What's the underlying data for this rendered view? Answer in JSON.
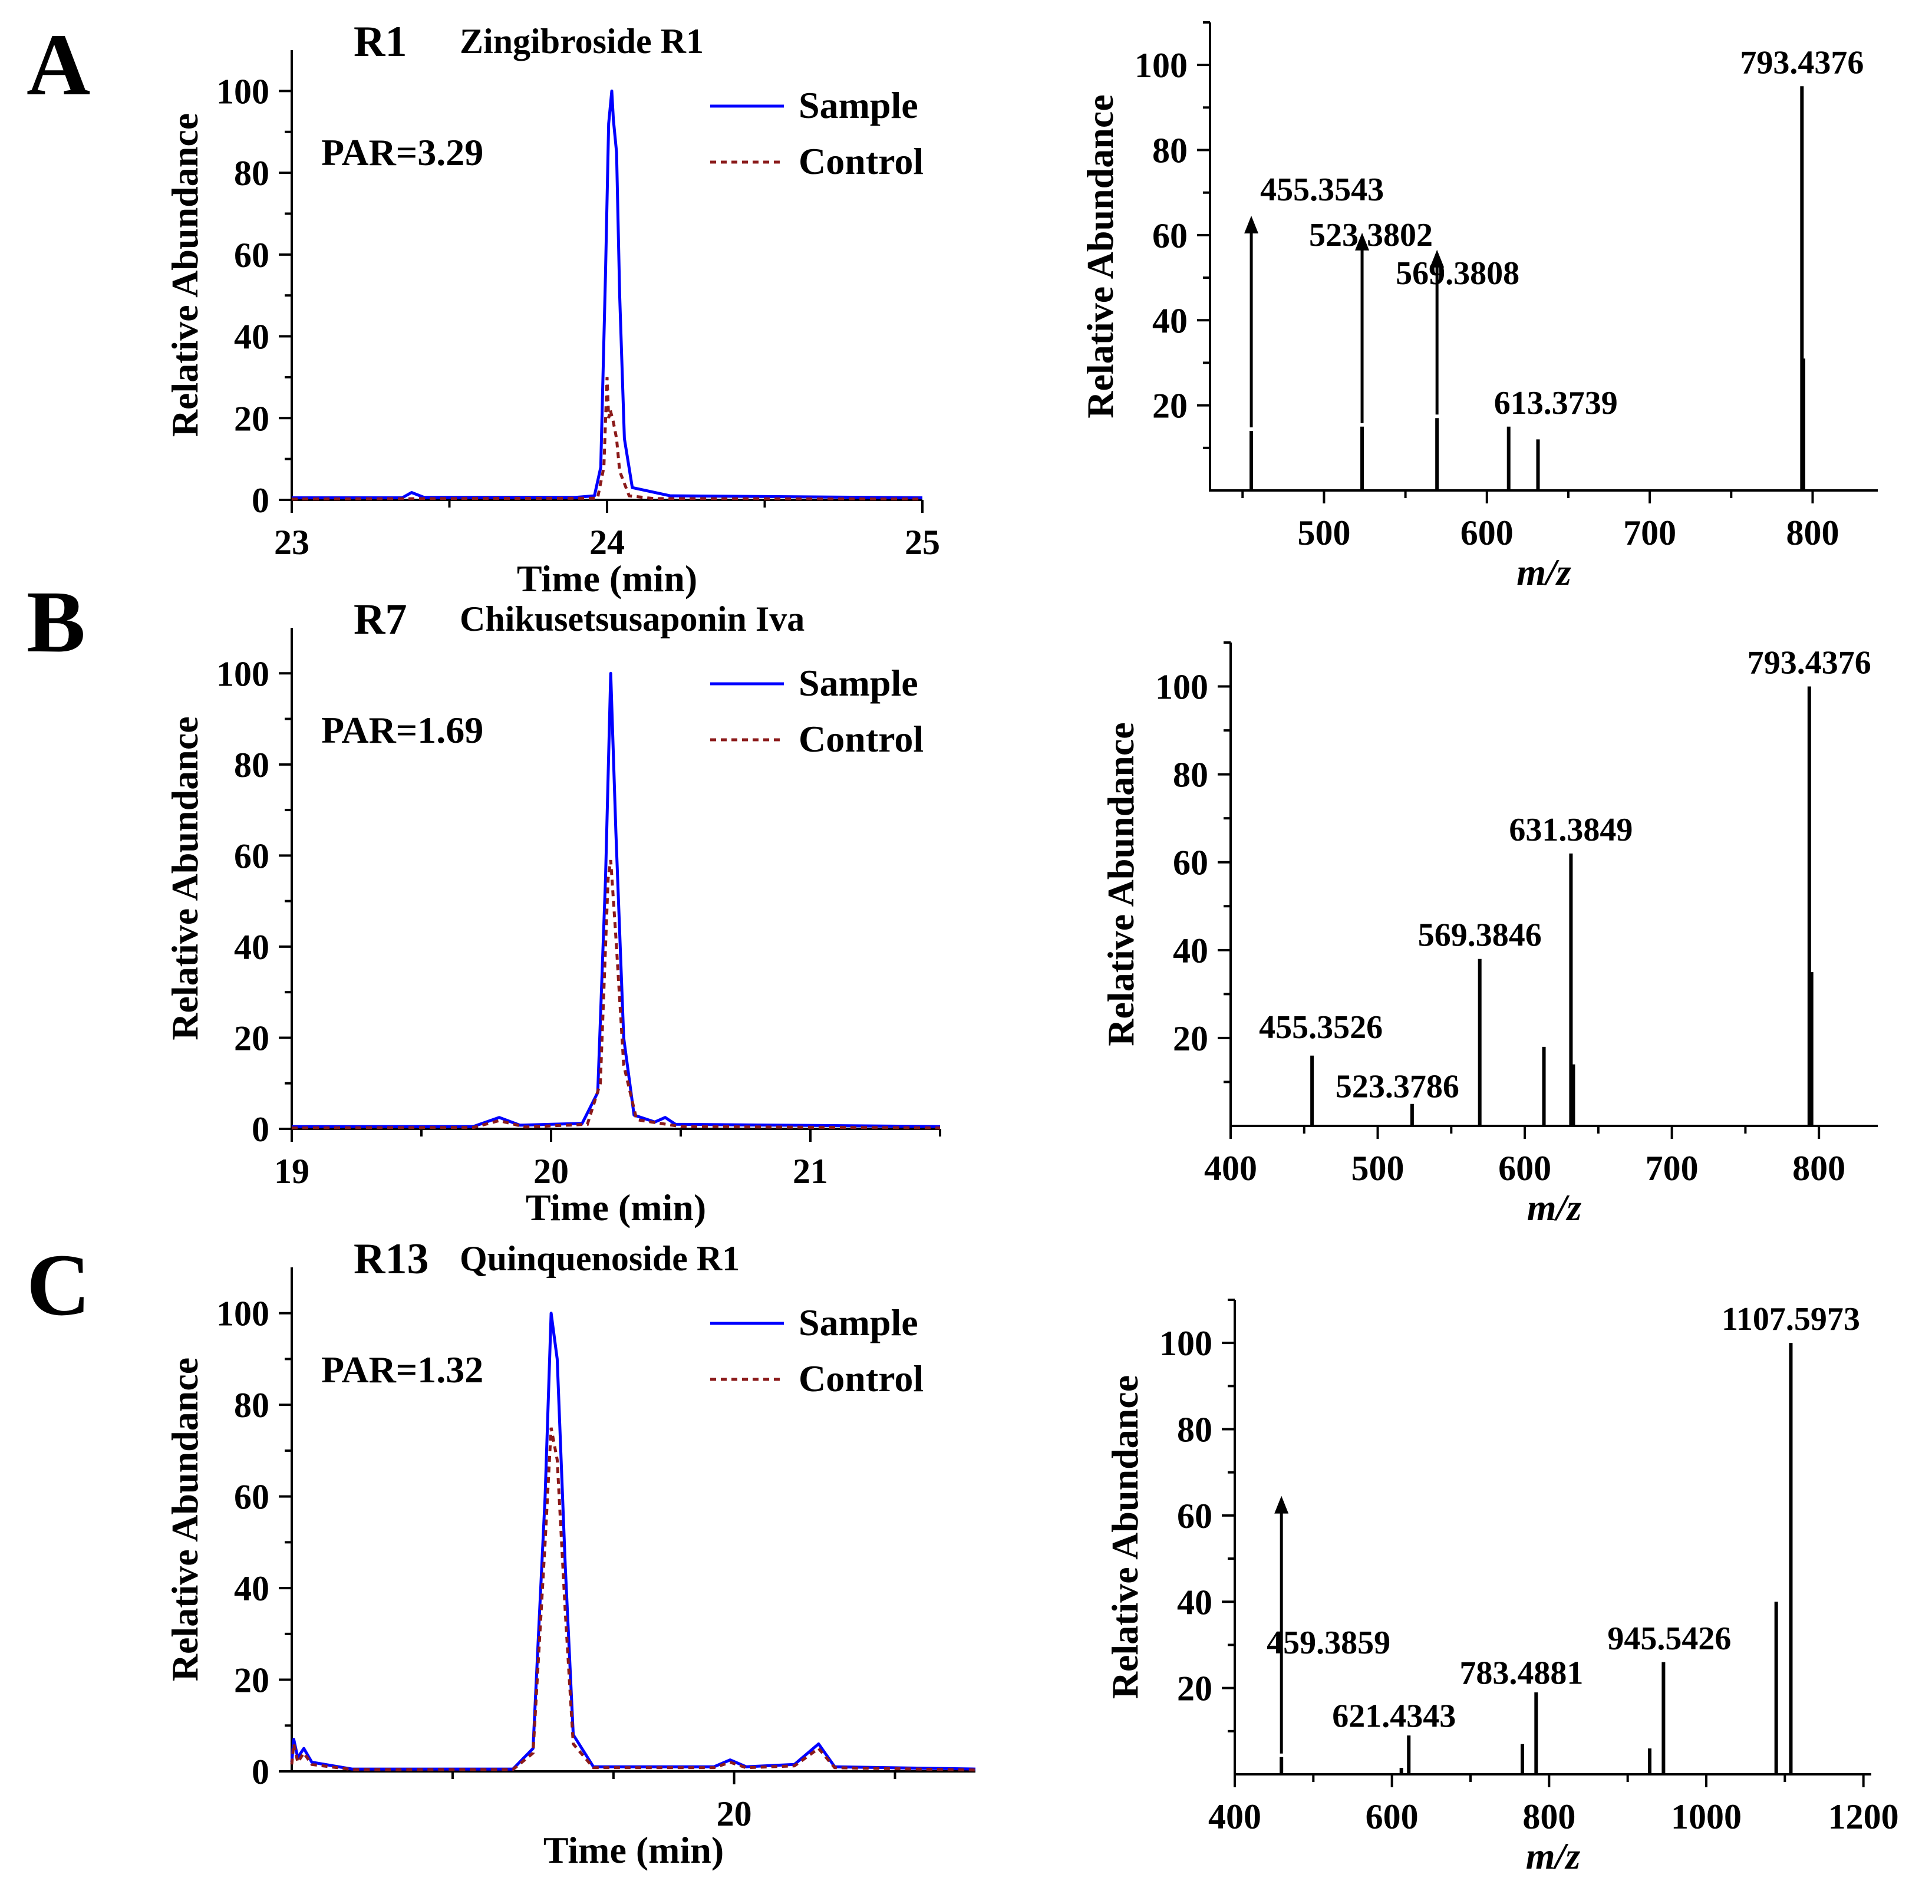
{
  "figure": {
    "common": {
      "ylabel": "Relative Abundance",
      "chrom_xlabel": "Time (min)",
      "ms_xlabel": "m/z"
    },
    "legend": {
      "sample": "Sample",
      "control": "Control"
    },
    "colors": {
      "sample": "#0000ff",
      "control": "#8b1a1a",
      "axis": "#000000"
    },
    "panels": [
      {
        "letter": "A",
        "id": "R1",
        "name": "Zingibroside R1",
        "par": "PAR=3.29",
        "chromatogram": {
          "xlim": [
            23,
            25
          ],
          "xticks": [
            23,
            24,
            25
          ],
          "ylim": [
            0,
            110
          ],
          "yticks": [
            0,
            20,
            40,
            60,
            80,
            100
          ],
          "sample": [
            [
              23.0,
              0.5
            ],
            [
              23.35,
              0.5
            ],
            [
              23.38,
              1.8
            ],
            [
              23.42,
              0.6
            ],
            [
              23.9,
              0.6
            ],
            [
              23.96,
              1
            ],
            [
              23.98,
              8
            ],
            [
              23.995,
              55
            ],
            [
              24.005,
              92
            ],
            [
              24.015,
              100
            ],
            [
              24.02,
              93
            ],
            [
              24.03,
              85
            ],
            [
              24.04,
              50
            ],
            [
              24.055,
              15
            ],
            [
              24.08,
              3
            ],
            [
              24.2,
              1
            ],
            [
              25.0,
              0.5
            ]
          ],
          "control": [
            [
              23.0,
              0.2
            ],
            [
              23.97,
              0.4
            ],
            [
              23.99,
              8
            ],
            [
              24.0,
              30
            ],
            [
              24.005,
              20
            ],
            [
              24.01,
              22
            ],
            [
              24.02,
              19
            ],
            [
              24.03,
              15
            ],
            [
              24.04,
              7
            ],
            [
              24.07,
              1
            ],
            [
              24.15,
              0.3
            ],
            [
              25.0,
              0.2
            ]
          ]
        },
        "ms": {
          "xlim": [
            430,
            840
          ],
          "xticks": [
            500,
            600,
            700,
            800
          ],
          "ylim": [
            0,
            110
          ],
          "yticks": [
            20,
            40,
            60,
            80,
            100
          ],
          "peaks": [
            {
              "mz": 455.3543,
              "intensity": 14,
              "label": "455.3543",
              "arrow": true
            },
            {
              "mz": 523.3802,
              "intensity": 15,
              "label": "523.3802",
              "arrow": true
            },
            {
              "mz": 569.3808,
              "intensity": 17,
              "label": "569.3808",
              "arrow": true
            },
            {
              "mz": 613.3739,
              "intensity": 15,
              "label": "613.3739",
              "arrow": false
            },
            {
              "mz": 631.3849,
              "intensity": 12,
              "label": "",
              "arrow": false
            },
            {
              "mz": 793.4376,
              "intensity": 95,
              "label": "793.4376",
              "arrow": false
            },
            {
              "mz": 794.4,
              "intensity": 31,
              "label": "",
              "arrow": false
            }
          ]
        }
      },
      {
        "letter": "B",
        "id": "R7",
        "name": "Chikusetsusaponin Iva",
        "par": "PAR=1.69",
        "chromatogram": {
          "xlim": [
            19,
            21.5
          ],
          "xticks": [
            19,
            20,
            21
          ],
          "ylim": [
            0,
            110
          ],
          "yticks": [
            0,
            20,
            40,
            60,
            80,
            100
          ],
          "sample": [
            [
              19.0,
              0.5
            ],
            [
              19.7,
              0.5
            ],
            [
              19.8,
              2.5
            ],
            [
              19.88,
              0.8
            ],
            [
              20.12,
              1.2
            ],
            [
              20.18,
              8
            ],
            [
              20.21,
              55
            ],
            [
              20.23,
              100
            ],
            [
              20.25,
              65
            ],
            [
              20.28,
              20
            ],
            [
              20.32,
              3
            ],
            [
              20.4,
              1.5
            ],
            [
              20.44,
              2.5
            ],
            [
              20.48,
              1
            ],
            [
              21.5,
              0.5
            ]
          ],
          "control": [
            [
              19.0,
              0.2
            ],
            [
              19.7,
              0.3
            ],
            [
              19.8,
              1.8
            ],
            [
              19.9,
              0.4
            ],
            [
              20.14,
              1
            ],
            [
              20.19,
              10
            ],
            [
              20.22,
              55
            ],
            [
              20.23,
              59
            ],
            [
              20.25,
              42
            ],
            [
              20.28,
              14
            ],
            [
              20.33,
              2
            ],
            [
              20.5,
              0.5
            ],
            [
              21.5,
              0.2
            ]
          ]
        },
        "ms": {
          "xlim": [
            400,
            840
          ],
          "xticks": [
            400,
            500,
            600,
            700,
            800
          ],
          "ylim": [
            0,
            110
          ],
          "yticks": [
            20,
            40,
            60,
            80,
            100
          ],
          "peaks": [
            {
              "mz": 455.3526,
              "intensity": 16,
              "label": "455.3526",
              "arrow": false
            },
            {
              "mz": 523.3786,
              "intensity": 5,
              "label": "523.3786",
              "arrow": false
            },
            {
              "mz": 569.3846,
              "intensity": 38,
              "label": "569.3846",
              "arrow": false
            },
            {
              "mz": 613.0,
              "intensity": 18,
              "label": "",
              "arrow": false
            },
            {
              "mz": 631.3849,
              "intensity": 62,
              "label": "631.3849",
              "arrow": false
            },
            {
              "mz": 633.0,
              "intensity": 14,
              "label": "",
              "arrow": false
            },
            {
              "mz": 793.4376,
              "intensity": 100,
              "label": "793.4376",
              "arrow": false
            },
            {
              "mz": 795.0,
              "intensity": 35,
              "label": "",
              "arrow": false
            }
          ]
        }
      },
      {
        "letter": "C",
        "id": "R13",
        "name": "Quinquenoside R1",
        "par": "PAR=1.32",
        "chromatogram": {
          "xlim": [
            17.8,
            21.2
          ],
          "xticks": [
            20
          ],
          "minor_xticks": [
            18.6,
            19.4,
            20.8
          ],
          "ylim": [
            0,
            110
          ],
          "yticks": [
            0,
            20,
            40,
            60,
            80,
            100
          ],
          "sample": [
            [
              17.8,
              2
            ],
            [
              17.81,
              7
            ],
            [
              17.83,
              3
            ],
            [
              17.86,
              5
            ],
            [
              17.9,
              2
            ],
            [
              18.1,
              0.5
            ],
            [
              18.9,
              0.5
            ],
            [
              19.0,
              5
            ],
            [
              19.06,
              60
            ],
            [
              19.09,
              100
            ],
            [
              19.12,
              90
            ],
            [
              19.16,
              45
            ],
            [
              19.2,
              8
            ],
            [
              19.3,
              1
            ],
            [
              19.9,
              1
            ],
            [
              19.98,
              2.5
            ],
            [
              20.06,
              1
            ],
            [
              20.3,
              1.5
            ],
            [
              20.42,
              6
            ],
            [
              20.5,
              1
            ],
            [
              21.2,
              0.5
            ]
          ],
          "control": [
            [
              17.8,
              1.5
            ],
            [
              17.81,
              6
            ],
            [
              17.83,
              2
            ],
            [
              17.86,
              4
            ],
            [
              17.9,
              1.5
            ],
            [
              18.1,
              0.4
            ],
            [
              18.9,
              0.4
            ],
            [
              19.0,
              4
            ],
            [
              19.06,
              50
            ],
            [
              19.09,
              75
            ],
            [
              19.12,
              68
            ],
            [
              19.16,
              35
            ],
            [
              19.2,
              6
            ],
            [
              19.3,
              0.8
            ],
            [
              19.9,
              0.8
            ],
            [
              19.98,
              2
            ],
            [
              20.06,
              0.8
            ],
            [
              20.3,
              1.2
            ],
            [
              20.42,
              5
            ],
            [
              20.5,
              0.8
            ],
            [
              21.2,
              0.3
            ]
          ]
        },
        "ms": {
          "xlim": [
            400,
            1210
          ],
          "xticks": [
            400,
            600,
            800,
            1000,
            1200
          ],
          "ylim": [
            0,
            110
          ],
          "yticks": [
            20,
            40,
            60,
            80,
            100
          ],
          "peaks": [
            {
              "mz": 459.3859,
              "intensity": 4,
              "label": "459.3859",
              "arrow": true
            },
            {
              "mz": 612.0,
              "intensity": 1.5,
              "label": "",
              "arrow": false
            },
            {
              "mz": 621.4343,
              "intensity": 9,
              "label": "621.4343",
              "arrow": false
            },
            {
              "mz": 766.0,
              "intensity": 7,
              "label": "",
              "arrow": false
            },
            {
              "mz": 783.4881,
              "intensity": 19,
              "label": "783.4881",
              "arrow": false
            },
            {
              "mz": 928.0,
              "intensity": 6,
              "label": "",
              "arrow": false
            },
            {
              "mz": 945.5426,
              "intensity": 26,
              "label": "945.5426",
              "arrow": false
            },
            {
              "mz": 1089.0,
              "intensity": 40,
              "label": "",
              "arrow": false
            },
            {
              "mz": 1107.5973,
              "intensity": 100,
              "label": "1107.5973",
              "arrow": false
            }
          ]
        }
      }
    ]
  }
}
